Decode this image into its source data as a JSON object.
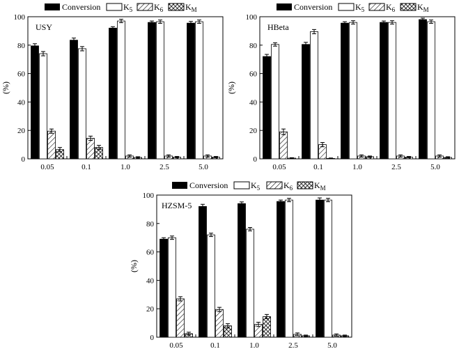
{
  "legend": {
    "entries": [
      {
        "key": "conversion",
        "label": "Conversion",
        "sub": ""
      },
      {
        "key": "k5",
        "label": "K",
        "sub": "5"
      },
      {
        "key": "k6",
        "label": "K",
        "sub": "6"
      },
      {
        "key": "km",
        "label": "K",
        "sub": "M"
      }
    ]
  },
  "chart_data": [
    {
      "type": "bar",
      "title": "USY",
      "xlabel": "",
      "ylabel": "(%)",
      "ylim": [
        0,
        100
      ],
      "yticks": [
        0,
        20,
        40,
        60,
        80,
        100
      ],
      "categories": [
        "0.05",
        "0.1",
        "1.0",
        "2.5",
        "5.0"
      ],
      "series": [
        {
          "name": "Conversion",
          "values": [
            79.5,
            83.5,
            92,
            96,
            95.5
          ],
          "errors": [
            1.5,
            1.5,
            1,
            1,
            1.2
          ]
        },
        {
          "name": "K5",
          "values": [
            74,
            77.5,
            97,
            96.5,
            96.5
          ],
          "errors": [
            1.5,
            1.5,
            1.2,
            1.2,
            1.2
          ]
        },
        {
          "name": "K6",
          "values": [
            19.5,
            14.5,
            2,
            2,
            2
          ],
          "errors": [
            1.5,
            1.5,
            0.8,
            0.8,
            0.8
          ]
        },
        {
          "name": "KM",
          "values": [
            6.5,
            8,
            1,
            1.2,
            1.2
          ],
          "errors": [
            1.5,
            1.5,
            0.5,
            0.5,
            0.5
          ]
        }
      ]
    },
    {
      "type": "bar",
      "title": "HBeta",
      "xlabel": "",
      "ylabel": "(%)",
      "ylim": [
        0,
        100
      ],
      "yticks": [
        0,
        20,
        40,
        60,
        80,
        100
      ],
      "categories": [
        "0.05",
        "0.1",
        "1.0",
        "2.5",
        "5.0"
      ],
      "series": [
        {
          "name": "Conversion",
          "values": [
            72,
            80.5,
            95.5,
            96,
            98
          ],
          "errors": [
            1.5,
            1.5,
            1,
            1,
            1
          ]
        },
        {
          "name": "K5",
          "values": [
            80.5,
            89.5,
            96,
            96,
            96.5
          ],
          "errors": [
            1.2,
            1.5,
            1.2,
            1.2,
            1.2
          ]
        },
        {
          "name": "K6",
          "values": [
            19,
            10,
            2,
            2,
            2
          ],
          "errors": [
            2,
            1.5,
            0.8,
            0.8,
            0.8
          ]
        },
        {
          "name": "KM",
          "values": [
            0.5,
            0.3,
            1.5,
            1.2,
            1
          ],
          "errors": [
            0.3,
            0.3,
            0.5,
            0.5,
            0.5
          ]
        }
      ]
    },
    {
      "type": "bar",
      "title": "HZSM-5",
      "xlabel": "",
      "ylabel": "(%)",
      "ylim": [
        0,
        100
      ],
      "yticks": [
        0,
        20,
        40,
        60,
        80,
        100
      ],
      "categories": [
        "0.05",
        "0.1",
        "1.0",
        "2.5",
        "5.0"
      ],
      "series": [
        {
          "name": "Conversion",
          "values": [
            69,
            92,
            94,
            95.5,
            96.5
          ],
          "errors": [
            1,
            1.5,
            1.2,
            1,
            1.5
          ]
        },
        {
          "name": "K5",
          "values": [
            70,
            72,
            76,
            96.5,
            96.5
          ],
          "errors": [
            1.2,
            1.2,
            1.2,
            1.2,
            1.2
          ]
        },
        {
          "name": "K6",
          "values": [
            27,
            19.5,
            9,
            2,
            1.5
          ],
          "errors": [
            1.5,
            1.5,
            1.5,
            1,
            0.8
          ]
        },
        {
          "name": "KM",
          "values": [
            2.5,
            8,
            14.5,
            1,
            1
          ],
          "errors": [
            1,
            1.5,
            1.5,
            0.5,
            0.5
          ]
        }
      ]
    }
  ]
}
